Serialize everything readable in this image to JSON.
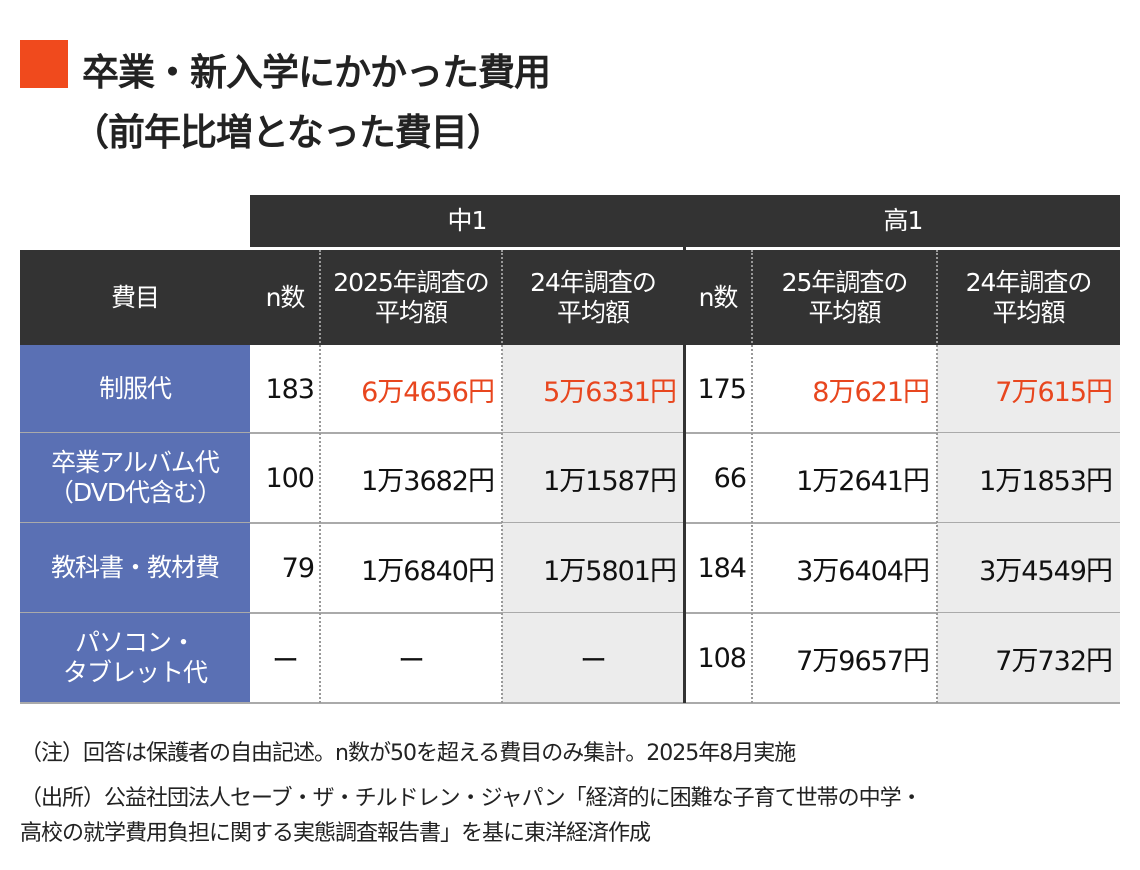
{
  "title": {
    "line1": "卒業・新入学にかかった費用",
    "line2": "（前年比増となった費目）"
  },
  "colors": {
    "accent": "#f04a1d",
    "header": "#333333",
    "row_label": "#5a70b4",
    "highlight_text": "#e8461e"
  },
  "chart_data": {
    "type": "table",
    "groups": [
      "中1",
      "高1"
    ],
    "header_label": "費目",
    "columns": [
      "n数",
      "2025年調査の平均額",
      "24年調査の平均額",
      "n数",
      "25年調査の平均額",
      "24年調査の平均額"
    ],
    "rows": [
      {
        "label": "制服代",
        "cells": [
          "183",
          "6万4656円",
          "5万6331円",
          "175",
          "8万621円",
          "7万615円"
        ],
        "highlight": true
      },
      {
        "label": "卒業アルバム代（DVD代含む）",
        "cells": [
          "100",
          "1万3682円",
          "1万1587円",
          "66",
          "1万2641円",
          "1万1853円"
        ],
        "highlight": false
      },
      {
        "label": "教科書・教材費",
        "cells": [
          "79",
          "1万6840円",
          "1万5801円",
          "184",
          "3万6404円",
          "3万4549円"
        ],
        "highlight": false
      },
      {
        "label": "パソコン・タブレット代",
        "cells": [
          "ー",
          "ー",
          "ー",
          "108",
          "7万9657円",
          "7万732円"
        ],
        "highlight": false
      }
    ]
  },
  "notes": [
    "（注）回答は保護者の自由記述。n数が50を超える費目のみ集計。2025年8月実施",
    "（出所）公益社団法人セーブ・ザ・チルドレン・ジャパン「経済的に困難な子育て世帯の中学・",
    "高校の就学費用負担に関する実態調査報告書」を基に東洋経済作成"
  ]
}
